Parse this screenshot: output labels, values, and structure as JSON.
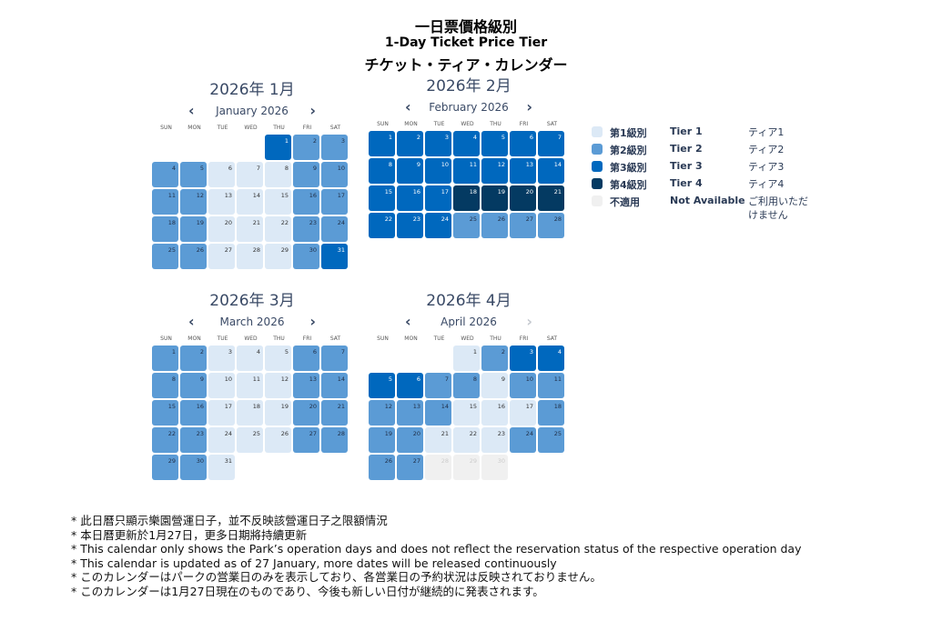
{
  "header": {
    "title_zh": "一日票價格級別",
    "title_en": "1-Day Ticket Price Tier",
    "title_ja": "チケット・ティア・カレンダー"
  },
  "weekdays": [
    "SUN",
    "MON",
    "TUE",
    "WED",
    "THU",
    "FRI",
    "SAT"
  ],
  "colors": {
    "tier1": "#dce9f6",
    "tier2": "#5b9bd5",
    "tier3": "#0068be",
    "tier4": "#043a62",
    "not_available": "#f0f0f0"
  },
  "months": [
    {
      "title": "2026年 1月",
      "nav_label": "January  2026",
      "start_weekday": 4,
      "prev_enabled": true,
      "next_enabled": true,
      "tiers": [
        3,
        2,
        2,
        2,
        2,
        1,
        1,
        1,
        2,
        2,
        2,
        2,
        1,
        1,
        1,
        2,
        2,
        2,
        2,
        1,
        1,
        1,
        2,
        2,
        2,
        2,
        1,
        1,
        1,
        2,
        3
      ]
    },
    {
      "title": "2026年 2月",
      "nav_label": "February  2026",
      "start_weekday": 0,
      "prev_enabled": true,
      "next_enabled": true,
      "tiers": [
        3,
        3,
        3,
        3,
        3,
        3,
        3,
        3,
        3,
        3,
        3,
        3,
        3,
        3,
        3,
        3,
        3,
        4,
        4,
        4,
        4,
        3,
        3,
        3,
        2,
        2,
        2,
        2
      ]
    },
    {
      "title": "2026年 3月",
      "nav_label": "March  2026",
      "start_weekday": 0,
      "prev_enabled": true,
      "next_enabled": true,
      "tiers": [
        2,
        2,
        1,
        1,
        1,
        2,
        2,
        2,
        2,
        1,
        1,
        1,
        2,
        2,
        2,
        2,
        1,
        1,
        1,
        2,
        2,
        2,
        2,
        1,
        1,
        1,
        2,
        2,
        2,
        2,
        1
      ]
    },
    {
      "title": "2026年 4月",
      "nav_label": "April  2026",
      "start_weekday": 3,
      "prev_enabled": true,
      "next_enabled": false,
      "tiers": [
        1,
        2,
        3,
        3,
        3,
        3,
        2,
        2,
        1,
        2,
        2,
        2,
        2,
        2,
        1,
        1,
        1,
        2,
        2,
        2,
        1,
        1,
        1,
        2,
        2,
        2,
        2,
        0,
        0,
        0
      ]
    }
  ],
  "nav_icons": {
    "prev": "chevron-left-icon",
    "next": "chevron-right-icon"
  },
  "legend": [
    {
      "tier": 1,
      "zh": "第1級別",
      "en": "Tier 1",
      "ja": "ティア1"
    },
    {
      "tier": 2,
      "zh": "第2級別",
      "en": "Tier 2",
      "ja": "ティア2"
    },
    {
      "tier": 3,
      "zh": "第3級別",
      "en": "Tier 3",
      "ja": "ティア3"
    },
    {
      "tier": 4,
      "zh": "第4級別",
      "en": "Tier 4",
      "ja": "ティア4"
    },
    {
      "tier": 0,
      "zh": "不適用",
      "en": "Not Available",
      "ja": "ご利用いただけません"
    }
  ],
  "notes": [
    "* 此日曆只顯示樂園營運日子，並不反映該營運日子之限額情況",
    "* 本日曆更新於1月27日，更多日期將持續更新",
    "* This calendar only shows the Park’s operation days and does not reflect the reservation status of the respective operation day",
    "* This calendar is updated as of 27 January, more dates will be released continuously",
    "* このカレンダーはパークの営業日のみを表示しており、各営業日の予約状況は反映されておりません。",
    "* このカレンダーは1月27日現在のものであり、今後も新しい日付が継続的に発表されます。"
  ]
}
